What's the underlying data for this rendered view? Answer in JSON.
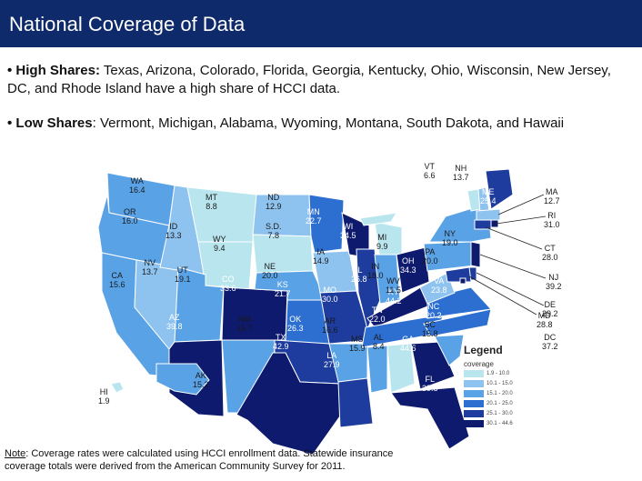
{
  "header": {
    "title": "National Coverage of Data"
  },
  "bullets": {
    "high_label": "• High Shares:",
    "high_text": " Texas, Arizona, Colorado, Florida, Georgia, Kentucky, Ohio, Wisconsin, New Jersey, DC, and Rhode Island have a high share of HCCI data.",
    "low_label": "• Low Shares",
    "low_text": ": Vermont, Michigan, Alabama, Wyoming, Montana, South Dakota, and Hawaii"
  },
  "colors": {
    "title_bg": "#0e2a6b",
    "ramp": [
      "#b9e6ee",
      "#8fc3ef",
      "#5aa2e6",
      "#2d6fd1",
      "#1d3c9d",
      "#0e1a6e"
    ]
  },
  "states": [
    {
      "abbr": "WA",
      "value": "16.4",
      "cls": 2
    },
    {
      "abbr": "OR",
      "value": "16.0",
      "cls": 2
    },
    {
      "abbr": "CA",
      "value": "15.6",
      "cls": 2
    },
    {
      "abbr": "NV",
      "value": "13.7",
      "cls": 1
    },
    {
      "abbr": "ID",
      "value": "13.3",
      "cls": 1
    },
    {
      "abbr": "MT",
      "value": "8.8",
      "cls": 0
    },
    {
      "abbr": "WY",
      "value": "9.4",
      "cls": 0
    },
    {
      "abbr": "UT",
      "value": "19.1",
      "cls": 2
    },
    {
      "abbr": "AZ",
      "value": "39.8",
      "cls": 5
    },
    {
      "abbr": "CO",
      "value": "33.6",
      "cls": 5
    },
    {
      "abbr": "NM",
      "value": "16.7",
      "cls": 2
    },
    {
      "abbr": "ND",
      "value": "12.9",
      "cls": 1
    },
    {
      "abbr": "S.D.",
      "value": "7.8",
      "cls": 0
    },
    {
      "abbr": "NE",
      "value": "20.0",
      "cls": 2
    },
    {
      "abbr": "KS",
      "value": "21.7",
      "cls": 3
    },
    {
      "abbr": "OK",
      "value": "26.3",
      "cls": 4
    },
    {
      "abbr": "TX",
      "value": "42.9",
      "cls": 5
    },
    {
      "abbr": "MN",
      "value": "22.7",
      "cls": 3
    },
    {
      "abbr": "IA",
      "value": "14.9",
      "cls": 1
    },
    {
      "abbr": "MO",
      "value": "30.0",
      "cls": 4
    },
    {
      "abbr": "AR",
      "value": "16.6",
      "cls": 2
    },
    {
      "abbr": "LA",
      "value": "27.9",
      "cls": 4
    },
    {
      "abbr": "WI",
      "value": "34.5",
      "cls": 5
    },
    {
      "abbr": "MI",
      "value": "9.9",
      "cls": 0
    },
    {
      "abbr": "IL",
      "value": "26.8",
      "cls": 4
    },
    {
      "abbr": "IN",
      "value": "18.0",
      "cls": 2
    },
    {
      "abbr": "OH",
      "value": "34.3",
      "cls": 5
    },
    {
      "abbr": "KY",
      "value": "44.2",
      "cls": 5
    },
    {
      "abbr": "TN",
      "value": "22.0",
      "cls": 3
    },
    {
      "abbr": "MS",
      "value": "15.9",
      "cls": 2
    },
    {
      "abbr": "AL",
      "value": "8.4",
      "cls": 0
    },
    {
      "abbr": "GA",
      "value": "44.6",
      "cls": 5
    },
    {
      "abbr": "FL",
      "value": "39.8",
      "cls": 5
    },
    {
      "abbr": "SC",
      "value": "15.8",
      "cls": 2
    },
    {
      "abbr": "NC",
      "value": "20.2",
      "cls": 3
    },
    {
      "abbr": "VA",
      "value": "23.8",
      "cls": 3
    },
    {
      "abbr": "WV",
      "value": "11.5",
      "cls": 1
    },
    {
      "abbr": "PA",
      "value": "20.0",
      "cls": 2
    },
    {
      "abbr": "NY",
      "value": "19.0",
      "cls": 2
    },
    {
      "abbr": "VT",
      "value": "6.6",
      "cls": 0
    },
    {
      "abbr": "NH",
      "value": "13.7",
      "cls": 1
    },
    {
      "abbr": "ME",
      "value": "25.4",
      "cls": 4
    },
    {
      "abbr": "MA",
      "value": "12.7",
      "cls": 1
    },
    {
      "abbr": "RI",
      "value": "31.0",
      "cls": 5
    },
    {
      "abbr": "CT",
      "value": "28.0",
      "cls": 4
    },
    {
      "abbr": "NJ",
      "value": "39.2",
      "cls": 5
    },
    {
      "abbr": "DE",
      "value": "29.2",
      "cls": 4
    },
    {
      "abbr": "MD",
      "value": "28.8",
      "cls": 4
    },
    {
      "abbr": "DC",
      "value": "37.2",
      "cls": 5
    },
    {
      "abbr": "AK",
      "value": "15.2",
      "cls": 2
    },
    {
      "abbr": "HI",
      "value": "1.9",
      "cls": 0
    }
  ],
  "legend": {
    "title": "Legend",
    "subtitle": "coverage",
    "ranges": [
      "1.9 - 10.0",
      "10.1 - 15.0",
      "15.1 - 20.0",
      "20.1 - 25.0",
      "25.1 - 30.0",
      "30.1 - 44.6"
    ]
  },
  "note": {
    "label": "Note",
    "text": ": Coverage rates were calculated using HCCI enrollment data. Statewide insurance coverage totals were derived from the American Community Survey for 2011."
  }
}
